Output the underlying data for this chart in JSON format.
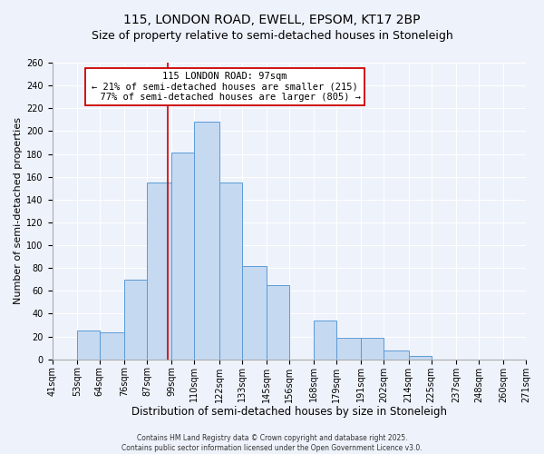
{
  "title": "115, LONDON ROAD, EWELL, EPSOM, KT17 2BP",
  "subtitle": "Size of property relative to semi-detached houses in Stoneleigh",
  "xlabel": "Distribution of semi-detached houses by size in Stoneleigh",
  "ylabel": "Number of semi-detached properties",
  "bin_labels": [
    "41sqm",
    "53sqm",
    "64sqm",
    "76sqm",
    "87sqm",
    "99sqm",
    "110sqm",
    "122sqm",
    "133sqm",
    "145sqm",
    "156sqm",
    "168sqm",
    "179sqm",
    "191sqm",
    "202sqm",
    "214sqm",
    "225sqm",
    "237sqm",
    "248sqm",
    "260sqm",
    "271sqm"
  ],
  "bin_edges": [
    41,
    53,
    64,
    76,
    87,
    99,
    110,
    122,
    133,
    145,
    156,
    168,
    179,
    191,
    202,
    214,
    225,
    237,
    248,
    260,
    271
  ],
  "counts": [
    0,
    25,
    24,
    70,
    155,
    181,
    208,
    155,
    82,
    65,
    0,
    34,
    19,
    19,
    8,
    3,
    0,
    0,
    0,
    0
  ],
  "bar_color": "#c5d9f1",
  "bar_edge_color": "#5b9bd5",
  "property_size": 97,
  "pct_smaller": 21,
  "pct_larger": 77,
  "n_smaller": 215,
  "n_larger": 805,
  "annotation_box_facecolor": "#ffffff",
  "annotation_box_edgecolor": "#cc0000",
  "vline_color": "#cc0000",
  "ylim": [
    0,
    260
  ],
  "yticks": [
    0,
    20,
    40,
    60,
    80,
    100,
    120,
    140,
    160,
    180,
    200,
    220,
    240,
    260
  ],
  "background_color": "#eef2fb",
  "grid_color": "#ffffff",
  "footer_line1": "Contains HM Land Registry data © Crown copyright and database right 2025.",
  "footer_line2": "Contains public sector information licensed under the Open Government Licence v3.0.",
  "title_fontsize": 10,
  "subtitle_fontsize": 9,
  "xlabel_fontsize": 8.5,
  "ylabel_fontsize": 8,
  "tick_fontsize": 7,
  "annotation_fontsize": 7.5,
  "footer_fontsize": 5.5
}
